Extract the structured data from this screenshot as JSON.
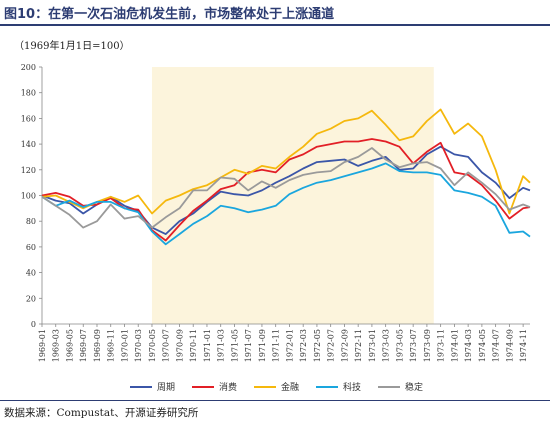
{
  "header": {
    "title": "图10：在第一次石油危机发生前，市场整体处于上涨通道"
  },
  "unit_label": "（1969年1月1日=100）",
  "source": "数据来源：Compustat、开源证券研究所",
  "colors": {
    "周期": "#3b56a8",
    "消费": "#e21f26",
    "金融": "#f5b80d",
    "科技": "#1aa6de",
    "稳定": "#9a9a9a",
    "highlight": "#fcf4dc",
    "title_rule": "#2d3d73"
  },
  "chart_data": {
    "type": "line",
    "title": "图10：在第一次石油危机发生前，市场整体处于上涨通道",
    "ylabel": "（1969年1月1日=100）",
    "ylim": [
      0,
      200
    ],
    "yticks": [
      0,
      20,
      40,
      60,
      80,
      100,
      120,
      140,
      160,
      180,
      200
    ],
    "grid": false,
    "legend": "bottom",
    "shaded_period": [
      "1970-05",
      "1973-10"
    ],
    "x": [
      "1969-01",
      "1969-03",
      "1969-05",
      "1969-07",
      "1969-09",
      "1969-11",
      "1970-01",
      "1970-03",
      "1970-05",
      "1970-07",
      "1970-09",
      "1970-11",
      "1971-01",
      "1971-03",
      "1971-05",
      "1971-07",
      "1971-09",
      "1971-11",
      "1972-01",
      "1972-03",
      "1972-05",
      "1972-07",
      "1972-09",
      "1972-11",
      "1973-01",
      "1973-03",
      "1973-05",
      "1973-07",
      "1973-09",
      "1973-11",
      "1974-01",
      "1974-03",
      "1974-05",
      "1974-07",
      "1974-09",
      "1974-11",
      "1974-12"
    ],
    "tick_labels": [
      "1969-01",
      "1969-03",
      "1969-05",
      "1969-07",
      "1969-09",
      "1969-11",
      "1970-01",
      "1970-03",
      "1970-05",
      "1970-07",
      "1970-09",
      "1970-11",
      "1971-01",
      "1971-03",
      "1971-05",
      "1971-07",
      "1971-09",
      "1971-11",
      "1972-01",
      "1972-03",
      "1972-05",
      "1972-07",
      "1972-09",
      "1972-11",
      "1973-01",
      "1973-03",
      "1973-05",
      "1973-07",
      "1973-09",
      "1973-11",
      "1974-01",
      "1974-03",
      "1974-05",
      "1974-07",
      "1974-09",
      "1974-11"
    ],
    "series": [
      {
        "name": "周期",
        "values": [
          100,
          96,
          94,
          86,
          93,
          99,
          92,
          88,
          75,
          70,
          80,
          86,
          95,
          103,
          101,
          100,
          104,
          110,
          115,
          121,
          126,
          127,
          128,
          123,
          127,
          130,
          120,
          121,
          132,
          138,
          132,
          130,
          118,
          110,
          98,
          106,
          104
        ]
      },
      {
        "name": "消费",
        "values": [
          100,
          102,
          99,
          92,
          93,
          98,
          90,
          89,
          73,
          65,
          77,
          88,
          96,
          105,
          108,
          118,
          120,
          118,
          128,
          132,
          138,
          140,
          142,
          142,
          144,
          142,
          138,
          125,
          134,
          141,
          118,
          116,
          108,
          96,
          82,
          90,
          91
        ]
      },
      {
        "name": "金融",
        "values": [
          99,
          100,
          95,
          90,
          95,
          99,
          95,
          100,
          86,
          96,
          100,
          105,
          108,
          114,
          120,
          117,
          123,
          121,
          130,
          138,
          148,
          152,
          158,
          160,
          166,
          155,
          143,
          146,
          158,
          167,
          148,
          156,
          146,
          120,
          86,
          115,
          110
        ]
      },
      {
        "name": "科技",
        "values": [
          99,
          92,
          96,
          91,
          95,
          95,
          90,
          87,
          72,
          62,
          70,
          78,
          84,
          92,
          90,
          87,
          89,
          92,
          101,
          106,
          110,
          112,
          115,
          118,
          121,
          125,
          119,
          118,
          118,
          116,
          104,
          102,
          99,
          92,
          71,
          72,
          68
        ]
      },
      {
        "name": "稳定",
        "values": [
          99,
          92,
          85,
          75,
          80,
          93,
          82,
          84,
          75,
          83,
          90,
          104,
          104,
          114,
          113,
          104,
          111,
          106,
          112,
          116,
          118,
          119,
          126,
          130,
          137,
          128,
          122,
          125,
          126,
          121,
          108,
          118,
          110,
          101,
          89,
          93,
          91
        ]
      }
    ]
  }
}
